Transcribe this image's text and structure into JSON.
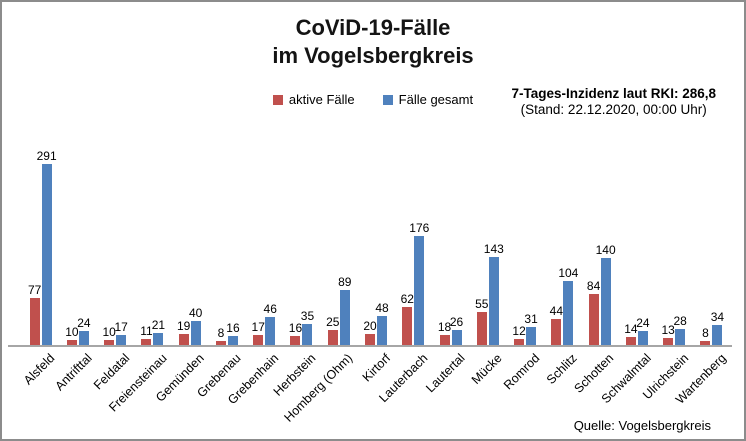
{
  "header": {
    "title_line1": "CoViD-19-Fälle",
    "title_line2": "im Vogelsbergkreis"
  },
  "incidence": {
    "line1": "7-Tages-Inzidenz laut RKI: 286,8",
    "line2": "(Stand: 22.12.2020, 00:00 Uhr)"
  },
  "source": "Quelle: Vogelsbergkreis",
  "colors": {
    "active_cases": "#C0504D",
    "total_cases": "#4F81BD",
    "axis_line": "#A6A6A6",
    "frame_border": "#8C8C8C"
  },
  "chart_data": {
    "type": "bar",
    "title": "CoViD-19-Fälle im Vogelsbergkreis",
    "xlabel": "",
    "ylabel": "",
    "ylim": [
      0,
      300
    ],
    "grid": false,
    "legend_position": "top-center",
    "value_labels": true,
    "categories": [
      "Alsfeld",
      "Antrifttal",
      "Feldatal",
      "Freiensteinau",
      "Gemünden",
      "Grebenau",
      "Grebenhain",
      "Herbstein",
      "Homberg (Ohm)",
      "Kirtorf",
      "Lauterbach",
      "Lautertal",
      "Mücke",
      "Romrod",
      "Schlitz",
      "Schotten",
      "Schwalmtal",
      "Ulrichstein",
      "Wartenberg"
    ],
    "series": [
      {
        "name": "aktive Fälle",
        "color": "#C0504D",
        "values": [
          77,
          10,
          10,
          11,
          19,
          8,
          17,
          16,
          25,
          20,
          62,
          18,
          55,
          12,
          44,
          84,
          14,
          13,
          8
        ]
      },
      {
        "name": "Fälle gesamt",
        "color": "#4F81BD",
        "values": [
          291,
          24,
          17,
          21,
          40,
          16,
          46,
          35,
          89,
          48,
          176,
          26,
          143,
          31,
          104,
          140,
          24,
          28,
          34
        ]
      }
    ]
  }
}
